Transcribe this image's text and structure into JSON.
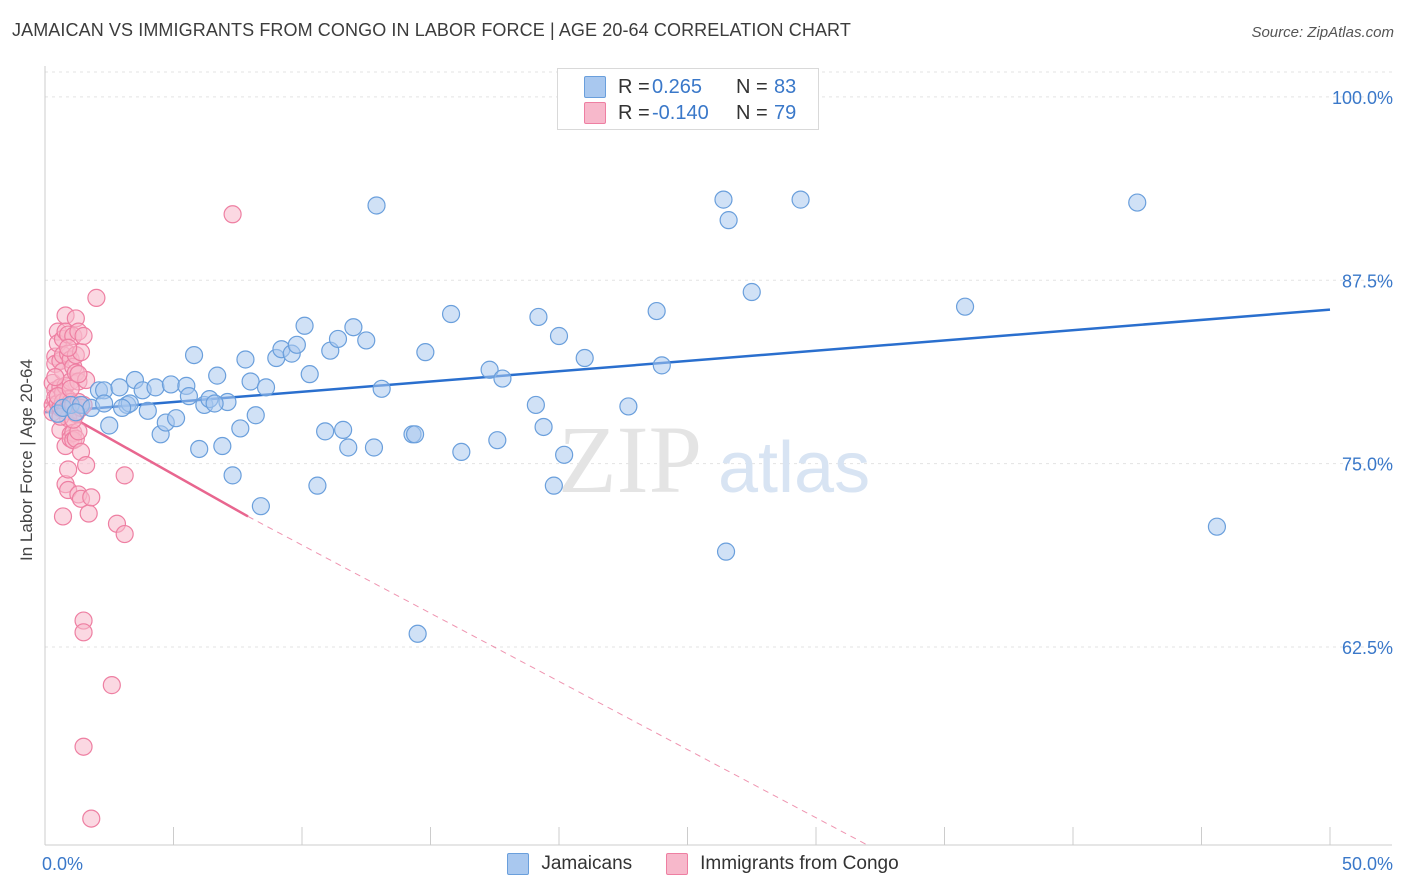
{
  "header": {
    "title": "JAMAICAN VS IMMIGRANTS FROM CONGO IN LABOR FORCE | AGE 20-64 CORRELATION CHART",
    "source": "Source: ZipAtlas.com"
  },
  "colors": {
    "blue_fill": "#a9c8ef",
    "blue_stroke": "#6a9fdc",
    "blue_line": "#2a6fce",
    "blue_text": "#3a78c9",
    "pink_fill": "#f7b8cb",
    "pink_stroke": "#ee7fa2",
    "pink_line": "#e8668f",
    "grid": "#e3e3e3",
    "axis": "#cccccc"
  },
  "stats": [
    {
      "r_label": "R =",
      "r_value": "0.265",
      "n_label": "N =",
      "n_value": "83"
    },
    {
      "r_label": "R =",
      "r_value": "-0.140",
      "n_label": "N =",
      "n_value": "79"
    }
  ],
  "legend": [
    {
      "label": "Jamaicans"
    },
    {
      "label": "Immigrants from Congo"
    }
  ],
  "watermark": {
    "zip": "ZIP",
    "atlas": "atlas"
  },
  "chart_data": {
    "type": "scatter",
    "title": "JAMAICAN VS IMMIGRANTS FROM CONGO IN LABOR FORCE | AGE 20-64 CORRELATION CHART",
    "xlabel": "",
    "ylabel": "In Labor Force | Age 20-64",
    "xlim": [
      0,
      50
    ],
    "ylim": [
      49,
      101.7
    ],
    "x_tick_labels": [
      "0.0%",
      "50.0%"
    ],
    "y_ticks": [
      62.5,
      75.0,
      87.5,
      100.0
    ],
    "y_tick_labels": [
      "62.5%",
      "75.0%",
      "87.5%",
      "100.0%"
    ],
    "grid": true,
    "legend_position": "bottom-center",
    "series": [
      {
        "name": "Jamaicans",
        "r": 0.265,
        "n": 83,
        "trend": {
          "x0": 0,
          "y0": 78.5,
          "x1": 50,
          "y1": 85.5
        },
        "points": [
          [
            0.5,
            78.4
          ],
          [
            0.7,
            78.8
          ],
          [
            1.0,
            79.0
          ],
          [
            1.4,
            79.0
          ],
          [
            1.8,
            78.8
          ],
          [
            2.1,
            80.0
          ],
          [
            2.3,
            80.0
          ],
          [
            2.3,
            79.1
          ],
          [
            2.5,
            77.6
          ],
          [
            2.9,
            80.2
          ],
          [
            3.2,
            79.0
          ],
          [
            3.3,
            79.1
          ],
          [
            3.5,
            80.7
          ],
          [
            3.8,
            80.0
          ],
          [
            4.0,
            78.6
          ],
          [
            4.3,
            80.2
          ],
          [
            4.5,
            77.0
          ],
          [
            4.7,
            77.8
          ],
          [
            4.9,
            80.4
          ],
          [
            5.1,
            78.1
          ],
          [
            5.5,
            80.3
          ],
          [
            5.6,
            79.6
          ],
          [
            5.8,
            82.4
          ],
          [
            6.0,
            76.0
          ],
          [
            6.2,
            79.0
          ],
          [
            6.4,
            79.4
          ],
          [
            6.7,
            81.0
          ],
          [
            6.9,
            76.2
          ],
          [
            7.1,
            79.2
          ],
          [
            7.3,
            74.2
          ],
          [
            7.6,
            77.4
          ],
          [
            7.8,
            82.1
          ],
          [
            8.0,
            80.6
          ],
          [
            8.2,
            78.3
          ],
          [
            8.4,
            72.1
          ],
          [
            8.6,
            80.2
          ],
          [
            9.0,
            82.2
          ],
          [
            9.2,
            82.8
          ],
          [
            9.6,
            82.5
          ],
          [
            9.8,
            83.1
          ],
          [
            10.1,
            84.4
          ],
          [
            10.3,
            81.1
          ],
          [
            10.6,
            73.5
          ],
          [
            10.9,
            77.2
          ],
          [
            11.1,
            82.7
          ],
          [
            11.4,
            83.5
          ],
          [
            11.6,
            77.3
          ],
          [
            11.8,
            76.1
          ],
          [
            12.0,
            84.3
          ],
          [
            12.5,
            83.4
          ],
          [
            12.8,
            76.1
          ],
          [
            12.9,
            92.6
          ],
          [
            13.1,
            80.1
          ],
          [
            14.3,
            77.0
          ],
          [
            14.4,
            77.0
          ],
          [
            14.8,
            82.6
          ],
          [
            15.8,
            85.2
          ],
          [
            16.2,
            75.8
          ],
          [
            17.3,
            81.4
          ],
          [
            17.6,
            76.6
          ],
          [
            17.8,
            80.8
          ],
          [
            19.1,
            79.0
          ],
          [
            19.2,
            85.0
          ],
          [
            19.4,
            77.5
          ],
          [
            19.8,
            73.5
          ],
          [
            20.0,
            83.7
          ],
          [
            20.2,
            75.6
          ],
          [
            21.0,
            82.2
          ],
          [
            22.7,
            78.9
          ],
          [
            23.8,
            85.4
          ],
          [
            24.0,
            81.7
          ],
          [
            26.4,
            93.0
          ],
          [
            26.5,
            69.0
          ],
          [
            26.6,
            91.6
          ],
          [
            27.5,
            86.7
          ],
          [
            29.4,
            93.0
          ],
          [
            35.8,
            85.7
          ],
          [
            42.5,
            92.8
          ],
          [
            45.6,
            70.7
          ],
          [
            14.5,
            63.4
          ],
          [
            1.2,
            78.5
          ],
          [
            3.0,
            78.8
          ],
          [
            6.6,
            79.1
          ]
        ]
      },
      {
        "name": "Immigrants from Congo",
        "r": -0.14,
        "n": 79,
        "trend": {
          "x0": 0,
          "y0": 79.2,
          "x1": 7.9,
          "y1": 71.4,
          "dash_to_x": 32.0,
          "dash_to_y": 49.0
        },
        "points": [
          [
            0.3,
            79.0
          ],
          [
            0.3,
            80.5
          ],
          [
            0.3,
            78.5
          ],
          [
            0.4,
            82.3
          ],
          [
            0.4,
            81.8
          ],
          [
            0.4,
            80.0
          ],
          [
            0.4,
            79.5
          ],
          [
            0.5,
            84.0
          ],
          [
            0.5,
            83.2
          ],
          [
            0.5,
            79.1
          ],
          [
            0.6,
            82.0
          ],
          [
            0.6,
            80.2
          ],
          [
            0.6,
            78.8
          ],
          [
            0.6,
            77.3
          ],
          [
            0.7,
            83.5
          ],
          [
            0.7,
            82.4
          ],
          [
            0.7,
            81.3
          ],
          [
            0.7,
            79.8
          ],
          [
            0.7,
            79.2
          ],
          [
            0.7,
            71.4
          ],
          [
            0.8,
            85.1
          ],
          [
            0.8,
            84.0
          ],
          [
            0.8,
            80.3
          ],
          [
            0.8,
            78.6
          ],
          [
            0.8,
            76.2
          ],
          [
            0.8,
            73.6
          ],
          [
            0.9,
            83.8
          ],
          [
            0.9,
            82.5
          ],
          [
            0.9,
            79.4
          ],
          [
            0.9,
            78.1
          ],
          [
            0.9,
            74.6
          ],
          [
            0.9,
            73.2
          ],
          [
            1.0,
            82.1
          ],
          [
            1.0,
            80.6
          ],
          [
            1.0,
            79.2
          ],
          [
            1.0,
            77.0
          ],
          [
            1.0,
            76.7
          ],
          [
            1.1,
            83.7
          ],
          [
            1.1,
            81.6
          ],
          [
            1.1,
            79.0
          ],
          [
            1.1,
            77.1
          ],
          [
            1.1,
            76.6
          ],
          [
            1.2,
            84.9
          ],
          [
            1.2,
            82.4
          ],
          [
            1.2,
            81.2
          ],
          [
            1.2,
            78.4
          ],
          [
            1.2,
            76.7
          ],
          [
            1.3,
            84.0
          ],
          [
            1.3,
            80.6
          ],
          [
            1.3,
            79.2
          ],
          [
            1.3,
            77.2
          ],
          [
            1.3,
            72.9
          ],
          [
            1.4,
            82.6
          ],
          [
            1.4,
            78.8
          ],
          [
            1.4,
            75.8
          ],
          [
            1.4,
            72.6
          ],
          [
            1.5,
            83.7
          ],
          [
            1.5,
            79.0
          ],
          [
            1.6,
            80.7
          ],
          [
            1.6,
            74.9
          ],
          [
            1.7,
            71.6
          ],
          [
            1.8,
            72.7
          ],
          [
            2.0,
            86.3
          ],
          [
            2.8,
            70.9
          ],
          [
            3.1,
            74.2
          ],
          [
            3.1,
            70.2
          ],
          [
            7.3,
            92.0
          ],
          [
            1.5,
            64.3
          ],
          [
            1.5,
            63.5
          ],
          [
            2.6,
            59.9
          ],
          [
            1.5,
            55.7
          ],
          [
            1.8,
            50.8
          ],
          [
            0.4,
            80.9
          ],
          [
            0.5,
            79.6
          ],
          [
            0.6,
            78.2
          ],
          [
            0.9,
            82.9
          ],
          [
            1.0,
            80.1
          ],
          [
            1.3,
            81.1
          ],
          [
            1.1,
            78.0
          ]
        ]
      }
    ]
  }
}
